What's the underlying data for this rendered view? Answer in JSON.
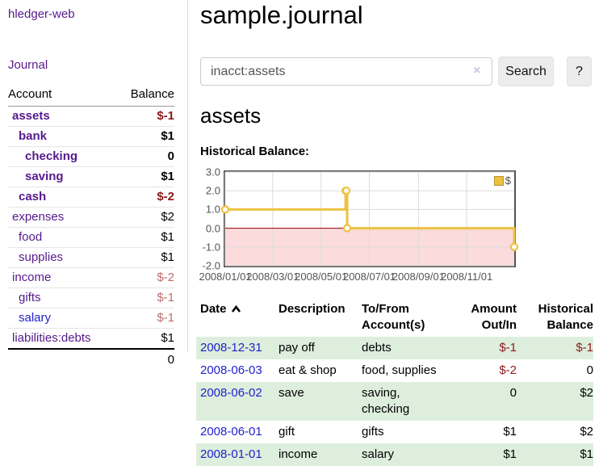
{
  "app": {
    "brand": "hledger-web",
    "nav_journal": "Journal"
  },
  "sidebar": {
    "header": {
      "account": "Account",
      "balance": "Balance"
    },
    "accounts": [
      {
        "name": "assets",
        "depth": 1,
        "balance": "$-1",
        "bold": true,
        "balance_style": "neg-strong",
        "link": "visited"
      },
      {
        "name": "bank",
        "depth": 2,
        "balance": "$1",
        "bold": true,
        "balance_style": "",
        "link": "visited"
      },
      {
        "name": "checking",
        "depth": 3,
        "balance": "0",
        "bold": true,
        "balance_style": "",
        "link": "visited"
      },
      {
        "name": "saving",
        "depth": 3,
        "balance": "$1",
        "bold": true,
        "balance_style": "",
        "link": "visited"
      },
      {
        "name": "cash",
        "depth": 2,
        "balance": "$-2",
        "bold": true,
        "balance_style": "neg-strong",
        "link": "visited"
      },
      {
        "name": "expenses",
        "depth": 1,
        "balance": "$2",
        "bold": false,
        "balance_style": "",
        "link": "visited"
      },
      {
        "name": "food",
        "depth": 2,
        "balance": "$1",
        "bold": false,
        "balance_style": "",
        "link": "visited"
      },
      {
        "name": "supplies",
        "depth": 2,
        "balance": "$1",
        "bold": false,
        "balance_style": "",
        "link": "visited"
      },
      {
        "name": "income",
        "depth": 1,
        "balance": "$-2",
        "bold": false,
        "balance_style": "neg-muted",
        "link": "visited"
      },
      {
        "name": "gifts",
        "depth": 2,
        "balance": "$-1",
        "bold": false,
        "balance_style": "neg-muted",
        "link": "visited"
      },
      {
        "name": "salary",
        "depth": 2,
        "balance": "$-1",
        "bold": false,
        "balance_style": "neg-muted",
        "link": "unvisited"
      },
      {
        "name": "liabilities:debts",
        "depth": 1,
        "balance": "$1",
        "bold": false,
        "balance_style": "",
        "link": "visited"
      }
    ],
    "total": "0"
  },
  "header": {
    "title": "sample.journal"
  },
  "search": {
    "value": "inacct:assets",
    "clear_glyph": "×",
    "button_label": "Search",
    "help_label": "?"
  },
  "account_view": {
    "heading": "assets"
  },
  "chart_data": {
    "type": "line",
    "title": "Historical Balance:",
    "style": "step",
    "legend_label": "$",
    "line_color": "#edc240",
    "marker_fill": "#ffffff",
    "x_range": [
      "2008-01-01",
      "2008-12-31"
    ],
    "ylim": [
      -2,
      3
    ],
    "ytick_labels": [
      "3.0",
      "2.0",
      "1.0",
      "0.0",
      "-1.0",
      "-2.0"
    ],
    "yticks": [
      3,
      2,
      1,
      0,
      -1,
      -2
    ],
    "xticks": [
      {
        "date": "2008-01-01",
        "label": "2008/01/01"
      },
      {
        "date": "2008-03-01",
        "label": "2008/03/01"
      },
      {
        "date": "2008-05-01",
        "label": "2008/05/01"
      },
      {
        "date": "2008-07-01",
        "label": "2008/07/01"
      },
      {
        "date": "2008-09-01",
        "label": "2008/09/01"
      },
      {
        "date": "2008-11-01",
        "label": "2008/11/01"
      }
    ],
    "series": [
      {
        "name": "$",
        "points": [
          [
            "2008-01-01",
            1
          ],
          [
            "2008-06-01",
            2
          ],
          [
            "2008-06-02",
            2
          ],
          [
            "2008-06-03",
            0
          ],
          [
            "2008-12-31",
            -1
          ]
        ]
      }
    ],
    "negative_region": {
      "below": 0,
      "fill": "#fbdbdb",
      "zero_line_color": "#990000"
    },
    "grid_color": "#dcdcdc",
    "border_color": "#545454"
  },
  "register": {
    "sort": "ascending",
    "columns": [
      "Date",
      "Description",
      "To/From Account(s)",
      "Amount Out/In",
      "Historical Balance"
    ],
    "rows": [
      {
        "date": "2008-12-31",
        "description": "pay off",
        "accounts": "debts",
        "amount": "$-1",
        "amount_negative": true,
        "balance": "$-1",
        "balance_negative": true
      },
      {
        "date": "2008-06-03",
        "description": "eat & shop",
        "accounts": "food, supplies",
        "amount": "$-2",
        "amount_negative": true,
        "balance": "0",
        "balance_negative": false
      },
      {
        "date": "2008-06-02",
        "description": "save",
        "accounts": "saving,\nchecking",
        "amount": "0",
        "amount_negative": false,
        "balance": "$2",
        "balance_negative": false
      },
      {
        "date": "2008-06-01",
        "description": "gift",
        "accounts": "gifts",
        "amount": "$1",
        "amount_negative": false,
        "balance": "$2",
        "balance_negative": false
      },
      {
        "date": "2008-01-01",
        "description": "income",
        "accounts": "salary",
        "amount": "$1",
        "amount_negative": false,
        "balance": "$1",
        "balance_negative": false
      }
    ]
  }
}
